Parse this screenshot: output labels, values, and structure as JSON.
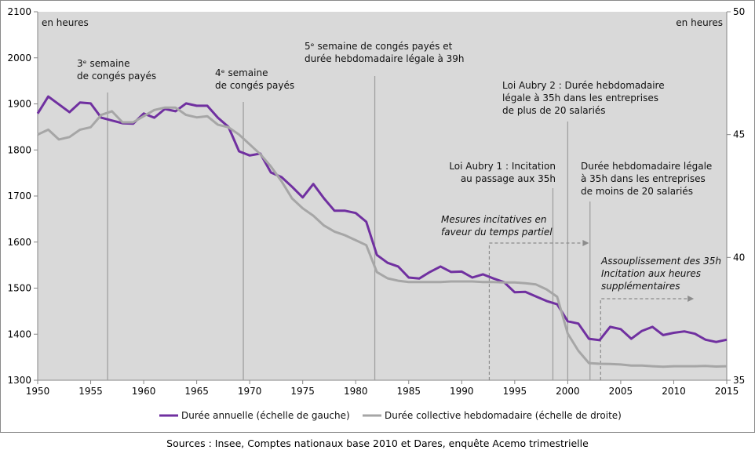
{
  "chart_data": {
    "type": "line",
    "title": "",
    "xlabel": "",
    "ylabel_left": "en heures",
    "ylabel_right": "en heures",
    "xlim": [
      1950,
      2015
    ],
    "ylim_left": [
      1300,
      2100
    ],
    "ylim_right": [
      35,
      50
    ],
    "x_ticks": [
      1950,
      1955,
      1960,
      1965,
      1970,
      1975,
      1980,
      1985,
      1990,
      1995,
      2000,
      2005,
      2010,
      2015
    ],
    "y_ticks_left": [
      1300,
      1400,
      1500,
      1600,
      1700,
      1800,
      1900,
      2000,
      2100
    ],
    "y_ticks_right": [
      35,
      40,
      45,
      50
    ],
    "grid": false,
    "background": "#d9d9d9",
    "legend_position": "bottom",
    "x": [
      1950,
      1951,
      1952,
      1953,
      1954,
      1955,
      1956,
      1957,
      1958,
      1959,
      1960,
      1961,
      1962,
      1963,
      1964,
      1965,
      1966,
      1967,
      1968,
      1969,
      1970,
      1971,
      1972,
      1973,
      1974,
      1975,
      1976,
      1977,
      1978,
      1979,
      1980,
      1981,
      1982,
      1983,
      1984,
      1985,
      1986,
      1987,
      1988,
      1989,
      1990,
      1991,
      1992,
      1993,
      1994,
      1995,
      1996,
      1997,
      1998,
      1999,
      2000,
      2001,
      2002,
      2003,
      2004,
      2005,
      2006,
      2007,
      2008,
      2009,
      2010,
      2011,
      2012,
      2013,
      2014,
      2015
    ],
    "series": [
      {
        "name": "Durée annuelle (échelle de gauche)",
        "axis": "left",
        "color": "#7030a0",
        "values": [
          1879,
          1916,
          1899,
          1882,
          1903,
          1901,
          1870,
          1864,
          1858,
          1857,
          1879,
          1870,
          1889,
          1884,
          1901,
          1896,
          1896,
          1870,
          1850,
          1797,
          1788,
          1792,
          1751,
          1741,
          1720,
          1697,
          1726,
          1695,
          1668,
          1668,
          1663,
          1644,
          1572,
          1555,
          1547,
          1523,
          1521,
          1535,
          1547,
          1535,
          1536,
          1523,
          1530,
          1521,
          1513,
          1491,
          1492,
          1482,
          1472,
          1465,
          1428,
          1423,
          1390,
          1387,
          1416,
          1411,
          1390,
          1407,
          1416,
          1398,
          1403,
          1406,
          1401,
          1388,
          1383,
          1388
        ]
      },
      {
        "name": "Durée collective hebdomadaire (échelle de droite)",
        "axis": "right",
        "color": "#a6a6a6",
        "values": [
          45.0,
          45.2,
          44.8,
          44.9,
          45.2,
          45.3,
          45.8,
          45.95,
          45.5,
          45.5,
          45.75,
          46.0,
          46.1,
          46.1,
          45.8,
          45.7,
          45.75,
          45.4,
          45.3,
          45.0,
          44.6,
          44.2,
          43.7,
          43.1,
          42.4,
          42.0,
          41.7,
          41.3,
          41.05,
          40.9,
          40.7,
          40.5,
          39.4,
          39.15,
          39.05,
          39.0,
          39.0,
          39.0,
          39.0,
          39.02,
          39.02,
          39.02,
          39.0,
          39.0,
          38.98,
          38.98,
          38.95,
          38.9,
          38.7,
          38.4,
          36.9,
          36.2,
          35.7,
          35.67,
          35.66,
          35.64,
          35.6,
          35.6,
          35.57,
          35.55,
          35.57,
          35.57,
          35.57,
          35.58,
          35.56,
          35.57
        ]
      }
    ],
    "events": [
      {
        "year": 1956.6,
        "lines": [
          "3ᵉ semaine",
          "de congés payés"
        ]
      },
      {
        "year": 1969.4,
        "lines": [
          "4ᵉ semaine",
          "de congés payés"
        ]
      },
      {
        "year": 1981.8,
        "lines": [
          "5ᵉ semaine de congés payés et",
          "durée hebdomadaire légale à 39h"
        ]
      },
      {
        "year": 1998.6,
        "lines": [
          "Loi Aubry 1 : Incitation",
          "au passage aux 35h"
        ]
      },
      {
        "year": 2000.0,
        "lines": [
          "Loi Aubry 2 : Durée hebdomadaire",
          "légale à 35h dans les entreprises",
          "de plus de 20 salariés"
        ]
      },
      {
        "year": 2002.1,
        "lines": [
          "Durée hebdomadaire légale",
          "à 35h dans les entreprises",
          "de moins de 20 salariés"
        ]
      }
    ],
    "periods": [
      {
        "from": 1992.6,
        "to": 2002.0,
        "lines": [
          "Mesures incitatives en",
          "faveur du temps partiel"
        ]
      },
      {
        "from": 2003.1,
        "to": 2011.9,
        "lines": [
          "Assouplissement des 35h",
          "Incitation aux heures",
          "supplémentaires"
        ]
      }
    ]
  },
  "source": "Sources : Insee, Comptes nationaux base 2010 et Dares, enquête Acemo trimestrielle"
}
